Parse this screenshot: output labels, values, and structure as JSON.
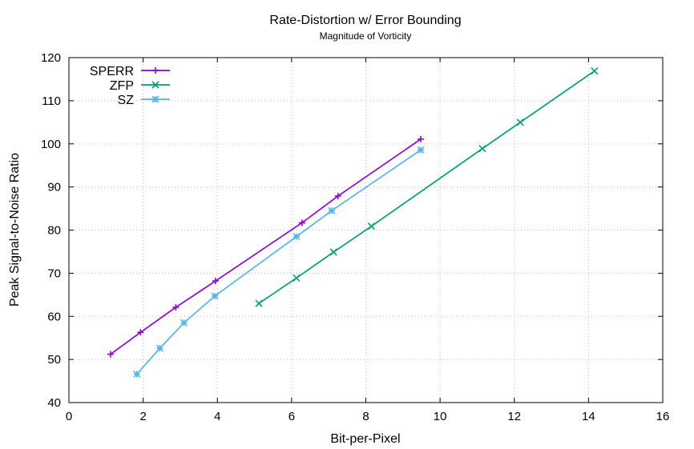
{
  "chart_data": {
    "type": "line",
    "title": "Rate-Distortion w/ Error Bounding",
    "subtitle": "Magnitude of Vorticity",
    "xlabel": "Bit-per-Pixel",
    "ylabel": "Peak Signal-to-Noise Ratio",
    "xlim": [
      0,
      16
    ],
    "ylim": [
      40,
      120
    ],
    "xticks": [
      0,
      2,
      4,
      6,
      8,
      10,
      12,
      14,
      16
    ],
    "yticks": [
      40,
      50,
      60,
      70,
      80,
      90,
      100,
      110,
      120
    ],
    "grid": true,
    "legend_position": "top-left",
    "series": [
      {
        "name": "SPERR",
        "color": "#9400d3",
        "marker": "plus",
        "x": [
          1.12,
          1.93,
          2.88,
          3.95,
          6.28,
          7.25,
          9.48
        ],
        "y": [
          51.2,
          56.3,
          62.1,
          68.2,
          81.7,
          87.9,
          101.1
        ]
      },
      {
        "name": "ZFP",
        "color": "#009e73",
        "marker": "cross",
        "x": [
          5.12,
          6.13,
          7.13,
          8.15,
          11.14,
          12.16,
          14.16
        ],
        "y": [
          63.0,
          68.9,
          74.9,
          80.9,
          98.9,
          105.0,
          116.9
        ]
      },
      {
        "name": "SZ",
        "color": "#56b4e9",
        "marker": "star",
        "x": [
          1.83,
          2.45,
          3.1,
          3.93,
          6.13,
          7.08,
          9.48
        ],
        "y": [
          46.6,
          52.6,
          58.5,
          64.7,
          78.5,
          84.5,
          98.6
        ]
      }
    ]
  }
}
